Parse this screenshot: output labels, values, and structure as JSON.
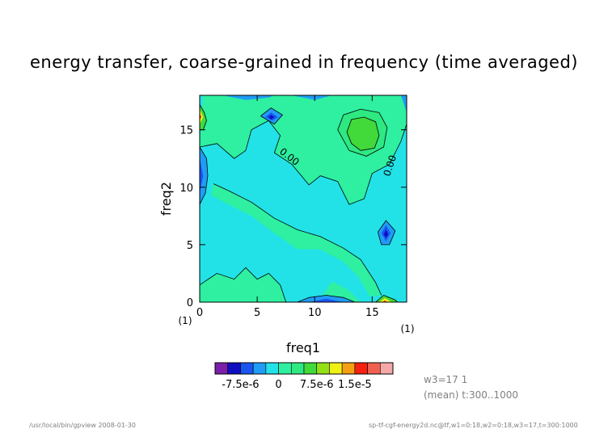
{
  "chart_data": {
    "type": "heatmap",
    "title": "energy transfer, coarse-grained in frequency (time averaged)",
    "xlabel": "freq1",
    "ylabel": "freq2",
    "x_unit": "(1)",
    "y_unit": "(1)",
    "xlim": [
      0,
      18
    ],
    "ylim": [
      0,
      18
    ],
    "x_ticks": [
      0,
      5,
      10,
      15
    ],
    "y_ticks": [
      0,
      5,
      10,
      15
    ],
    "contour_labels": [
      "0.00",
      "0.00"
    ],
    "colorbar": {
      "colors": [
        "#7a1fa8",
        "#0f0fc0",
        "#1a55f0",
        "#1f9cf5",
        "#22e2e8",
        "#2ef0a0",
        "#2ee882",
        "#42d93b",
        "#93e014",
        "#f0f015",
        "#f5a012",
        "#f52010",
        "#f06050",
        "#f5a8a8"
      ],
      "tick_labels": [
        "-7.5e-6",
        "0",
        "7.5e-6",
        "1.5e-5"
      ]
    },
    "features": [
      {
        "name": "positive maximum",
        "x": 14.5,
        "y": 14.5,
        "value": 1.1e-05
      },
      {
        "name": "negative minimum",
        "x": 6.2,
        "y": 16.0,
        "value": -6e-06
      },
      {
        "name": "negative minimum",
        "x": 16.2,
        "y": 5.8,
        "value": -6e-06
      },
      {
        "name": "negative minimum",
        "x": 11.0,
        "y": 0.0,
        "value": -6e-06
      },
      {
        "name": "negative minimum",
        "x": 0.0,
        "y": 11.5,
        "value": -6e-06
      },
      {
        "name": "corner extreme",
        "x": 0.2,
        "y": 16.0,
        "value": 1.5e-05
      },
      {
        "name": "corner extreme",
        "x": 16.0,
        "y": 0.2,
        "value": 1.5e-05
      }
    ]
  },
  "info": {
    "line1": "w3=17  1",
    "line2": "(mean) t:300..1000"
  },
  "footer": {
    "left": "/usr/local/bin/gpview   2008-01-30",
    "right": "sp-tf-cgf-energy2d.nc@tf,w1=0:18,w2=0:18,w3=17,t=300:1000"
  }
}
